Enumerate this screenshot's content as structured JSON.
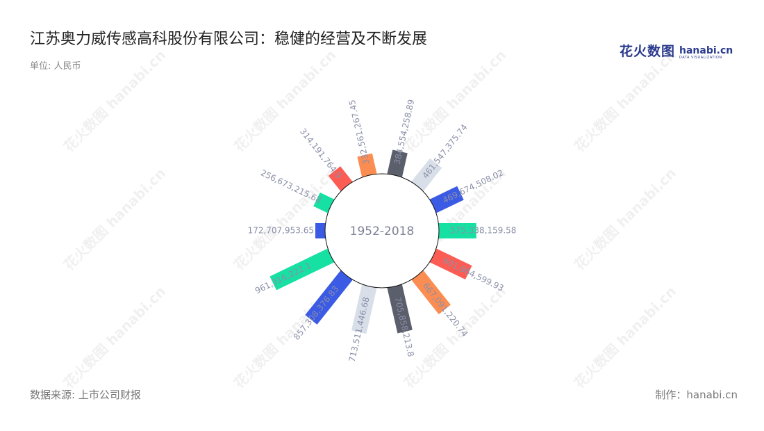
{
  "title": "江苏奥力威传感高科股份有限公司：稳健的经营及不断发展",
  "unit": "单位: 人民币",
  "logo": {
    "cn": "花火数图",
    "en": "hanabi.cn",
    "sub": "DATA VISUALIZATION"
  },
  "source": "数据来源: 上市公司财报",
  "maker": "制作：hanabi.cn",
  "watermark": "花火数图 hanabi.cn",
  "chart_data": {
    "type": "bar",
    "center_label": "1952-2018",
    "values": [
      332561267.45,
      384554258.89,
      461547375.74,
      469674508.02,
      575338159.58,
      601964599.93,
      667091220.74,
      705858213.8,
      713511446.68,
      857308376.83,
      961316222.1,
      172707953.65,
      256673215.68,
      314191764.9
    ],
    "labels": [
      "332,561,267.45",
      "384,554,258.89",
      "461,547,375.74",
      "469,674,508.02",
      "575,338,159.58",
      "601,964,599.93",
      "667,091,220.74",
      "705,858,213.8",
      "713,511,446.68",
      "857,308,376.83",
      "961,316,222.1",
      "172,707,953.65",
      "256,673,215.68",
      "314,191,764.9"
    ],
    "colors": [
      "#fc8d52",
      "#5b5e6b",
      "#d9dfe9",
      "#3b5be5",
      "#17e0a3",
      "#fb5d55",
      "#fc8d52",
      "#5b5e6b",
      "#d9dfe9",
      "#3b5be5",
      "#17e0a3",
      "#3b5be5",
      "#17e0a3",
      "#fb5d55"
    ],
    "label_color": "#8a8fa8"
  }
}
